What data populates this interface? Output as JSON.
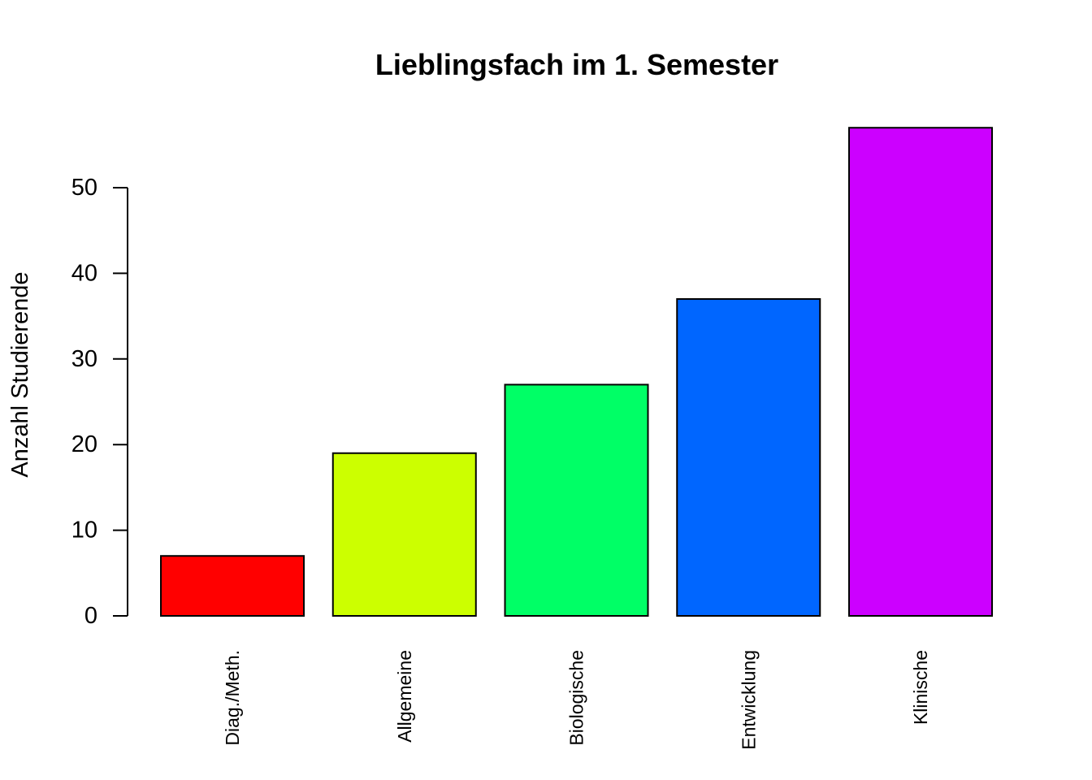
{
  "chart_data": {
    "type": "bar",
    "title": "Lieblingsfach im 1. Semester",
    "xlabel": "",
    "ylabel": "Anzahl Studierende",
    "categories": [
      "Diag./Meth.",
      "Allgemeine",
      "Biologische",
      "Entwicklung",
      "Klinische"
    ],
    "values": [
      7,
      19,
      27,
      37,
      57
    ],
    "colors": [
      "#FF0000",
      "#CCFF00",
      "#00FF66",
      "#0066FF",
      "#CC00FF"
    ],
    "y_ticks": [
      "0",
      "10",
      "20",
      "30",
      "40",
      "50"
    ],
    "ylim": [
      0,
      57
    ],
    "grid": false,
    "legend": "none",
    "x_tick_label_orientation": "vertical"
  }
}
